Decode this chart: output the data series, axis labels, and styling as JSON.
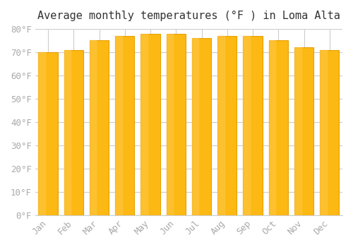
{
  "title": "Average monthly temperatures (°F ) in Loma Alta",
  "months": [
    "Jan",
    "Feb",
    "Mar",
    "Apr",
    "May",
    "Jun",
    "Jul",
    "Aug",
    "Sep",
    "Oct",
    "Nov",
    "Dec"
  ],
  "values": [
    70,
    71,
    75,
    77,
    78,
    78,
    76,
    77,
    77,
    75,
    72,
    71
  ],
  "bar_color_face": "#FDB913",
  "bar_color_edge": "#E8A000",
  "background_color": "#ffffff",
  "grid_color": "#cccccc",
  "tick_label_color": "#aaaaaa",
  "title_color": "#333333",
  "ylim": [
    0,
    80
  ],
  "yticks": [
    0,
    10,
    20,
    30,
    40,
    50,
    60,
    70,
    80
  ],
  "ytick_labels": [
    "0°F",
    "10°F",
    "20°F",
    "30°F",
    "40°F",
    "50°F",
    "60°F",
    "70°F",
    "80°F"
  ],
  "title_fontsize": 11,
  "tick_fontsize": 9
}
